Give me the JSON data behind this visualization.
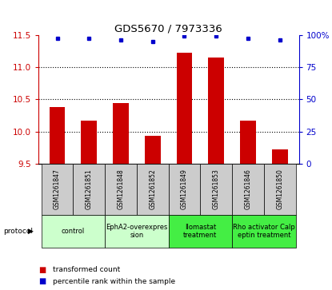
{
  "title": "GDS5670 / 7973336",
  "samples": [
    "GSM1261847",
    "GSM1261851",
    "GSM1261848",
    "GSM1261852",
    "GSM1261849",
    "GSM1261853",
    "GSM1261846",
    "GSM1261850"
  ],
  "bar_values": [
    10.38,
    10.17,
    10.44,
    9.93,
    11.22,
    11.15,
    10.17,
    9.72
  ],
  "percentile_values": [
    97,
    97,
    96,
    95,
    99,
    99,
    97,
    96
  ],
  "ylim_left": [
    9.5,
    11.5
  ],
  "yticks_left": [
    9.5,
    10.0,
    10.5,
    11.0,
    11.5
  ],
  "ylim_right": [
    0,
    100
  ],
  "yticks_right": [
    0,
    25,
    50,
    75,
    100
  ],
  "bar_color": "#cc0000",
  "dot_color": "#0000cc",
  "protocols": [
    {
      "label": "control",
      "spans": [
        0,
        1
      ],
      "color": "#ccffcc"
    },
    {
      "label": "EphA2-overexpres\nsion",
      "spans": [
        2,
        3
      ],
      "color": "#ccffcc"
    },
    {
      "label": "Ilomastat\ntreatment",
      "spans": [
        4,
        5
      ],
      "color": "#44ee44"
    },
    {
      "label": "Rho activator Calp\neptin treatment",
      "spans": [
        6,
        7
      ],
      "color": "#44ee44"
    }
  ],
  "legend_red_label": "transformed count",
  "legend_blue_label": "percentile rank within the sample",
  "sample_box_color": "#cccccc",
  "bar_width": 0.5
}
